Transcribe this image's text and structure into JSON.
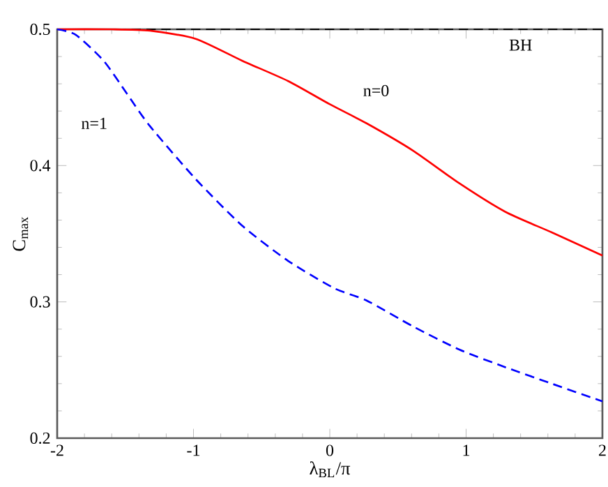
{
  "chart_data": {
    "type": "line",
    "xlabel": "λ$_{BL}$/π",
    "ylabel": "C$_{max}$",
    "xlim": [
      -2,
      2
    ],
    "ylim": [
      0.2,
      0.5
    ],
    "xticks": [
      -2,
      -1,
      0,
      1,
      2
    ],
    "yticks": [
      0.2,
      0.3,
      0.4,
      0.5
    ],
    "series": [
      {
        "color": "#ff0000",
        "line_style": "solid",
        "x": [
          -2,
          -1.6,
          -1.32,
          -0.983,
          -0.644,
          -0.305,
          0,
          0.27,
          0.61,
          0.95,
          1.289,
          1.628,
          2
        ],
        "values": [
          0.5,
          0.5,
          0.499,
          0.493,
          0.477,
          0.462,
          0.445,
          0.431,
          0.411,
          0.387,
          0.366,
          0.351,
          0.334
        ]
      },
      {
        "color": "#0000ff",
        "line_style": "dashed",
        "x": [
          -2,
          -1.864,
          -1.66,
          -1.49,
          -1.32,
          -0.983,
          -0.644,
          -0.305,
          0.033,
          0.27,
          0.61,
          0.95,
          1.289,
          1.628,
          2
        ],
        "values": [
          0.5,
          0.496,
          0.477,
          0.453,
          0.429,
          0.39,
          0.356,
          0.33,
          0.31,
          0.301,
          0.282,
          0.265,
          0.252,
          0.24,
          0.227
        ]
      }
    ],
    "ref_lines": [
      {
        "axis": "y",
        "value": 0.5,
        "label": "BH",
        "color": "#000000",
        "line_style": "dashed"
      }
    ],
    "annotations": [
      "n=0",
      "n=1"
    ],
    "marker": "none",
    "grid": false
  }
}
